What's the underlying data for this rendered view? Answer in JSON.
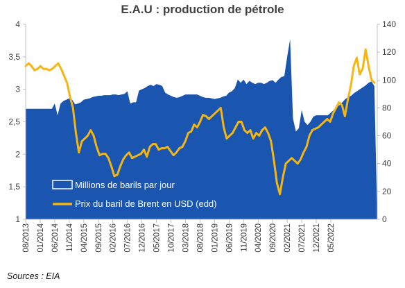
{
  "chart_data": {
    "type": "area+line",
    "title": "E.A.U : production de pétrole",
    "source": "Sources : EIA",
    "x_tick_labels": [
      "08/2013",
      "01/2014",
      "06/2014",
      "11/2014",
      "04/2015",
      "09/2015",
      "02/2016",
      "07/2016",
      "12/2016",
      "05/2017",
      "10/2017",
      "03/2018",
      "08/2018",
      "01/2019",
      "06/2019",
      "11/2019",
      "04/2020",
      "09/2020",
      "02/2021",
      "07/2021",
      "12/2021",
      "05/2022"
    ],
    "x_start": "2013-08",
    "y_left": {
      "ticks": [
        "1",
        "1,5",
        "2",
        "2,5",
        "3",
        "3,5",
        "4"
      ],
      "lim": [
        1,
        4
      ]
    },
    "y_right": {
      "ticks": [
        "0",
        "20",
        "40",
        "60",
        "80",
        "100",
        "120",
        "140"
      ],
      "lim": [
        0,
        140
      ]
    },
    "legend": {
      "area_label": "Millions de barils par jour",
      "line_label": "Prix du baril de Brent en USD (edd)"
    },
    "colors": {
      "area": "#1a56b0",
      "line": "#f5b614",
      "axis": "#bfbfbf"
    },
    "series": [
      {
        "name": "Millions de barils par jour",
        "axis": "left",
        "kind": "area",
        "values": [
          2.7,
          2.7,
          2.7,
          2.7,
          2.7,
          2.7,
          2.7,
          2.7,
          2.7,
          2.7,
          2.78,
          2.6,
          2.78,
          2.82,
          2.84,
          2.86,
          2.84,
          2.77,
          2.78,
          2.8,
          2.84,
          2.85,
          2.86,
          2.88,
          2.89,
          2.9,
          2.9,
          2.91,
          2.91,
          2.91,
          2.92,
          2.92,
          2.91,
          2.92,
          2.93,
          2.97,
          2.78,
          2.8,
          2.8,
          2.98,
          3.0,
          3.02,
          3.05,
          3.07,
          3.05,
          3.08,
          3.07,
          3.05,
          2.95,
          2.92,
          2.9,
          2.88,
          2.87,
          2.88,
          2.9,
          2.92,
          2.92,
          2.92,
          2.92,
          2.92,
          2.9,
          2.88,
          2.87,
          2.87,
          2.86,
          2.85,
          2.86,
          2.87,
          2.89,
          2.9,
          2.95,
          2.97,
          3.02,
          3.15,
          3.1,
          3.15,
          3.08,
          3.13,
          3.1,
          3.08,
          3.1,
          3.1,
          3.08,
          3.1,
          3.13,
          3.14,
          3.1,
          3.15,
          3.19,
          3.2,
          3.5,
          3.77,
          2.55,
          2.35,
          2.4,
          2.68,
          2.5,
          2.45,
          2.5,
          2.58,
          2.6,
          2.6,
          2.6,
          2.6,
          2.6,
          2.64,
          2.68,
          2.72,
          2.76,
          2.8,
          2.85,
          2.88,
          2.9,
          2.94,
          2.97,
          3.0,
          3.03,
          3.06,
          3.1,
          3.12,
          3.05,
          1.0
        ]
      },
      {
        "name": "Prix du baril de Brent en USD (edd)",
        "axis": "right",
        "kind": "line",
        "values": [
          110,
          112,
          110,
          107,
          108,
          110,
          108,
          108,
          107,
          108,
          110,
          112,
          108,
          103,
          98,
          88,
          80,
          62,
          48,
          56,
          58,
          60,
          64,
          60,
          52,
          46,
          47,
          47,
          44,
          38,
          31,
          32,
          38,
          43,
          46,
          48,
          44,
          45,
          46,
          47,
          50,
          45,
          52,
          54,
          54,
          50,
          51,
          51,
          52,
          49,
          46,
          48,
          51,
          52,
          56,
          62,
          63,
          68,
          66,
          70,
          75,
          74,
          72,
          74,
          76,
          78,
          80,
          66,
          58,
          60,
          62,
          66,
          70,
          70,
          64,
          62,
          64,
          58,
          62,
          60,
          64,
          66,
          62,
          56,
          42,
          26,
          18,
          30,
          40,
          42,
          44,
          42,
          40,
          43,
          48,
          52,
          60,
          64,
          65,
          66,
          68,
          70,
          72,
          70,
          76,
          80,
          84,
          82,
          74,
          86,
          96,
          110,
          116,
          104,
          108,
          122,
          110,
          100,
          98
        ]
      }
    ]
  }
}
